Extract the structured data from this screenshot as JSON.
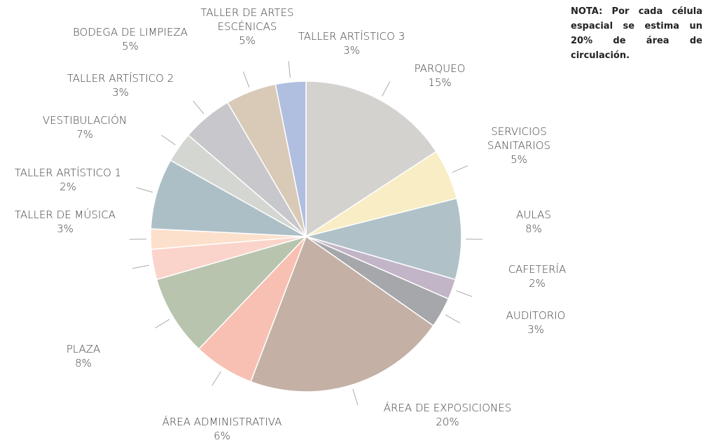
{
  "chart_data": {
    "type": "pie",
    "categories": [
      "PARQUEO",
      "SERVICIOS SANITARIOS",
      "AULAS",
      "CAFETERÍA",
      "AUDITORIO",
      "ÁREA DE EXPOSICIONES",
      "ÁREA ADMINISTRATIVA",
      "PLAZA",
      "TALLER DE MÚSICA",
      "TALLER ARTÍSTICO 1",
      "VESTIBULACIÓN",
      "TALLER ARTÍSTICO 2",
      "BODEGA DE LIMPIEZA",
      "TALLER DE ARTES ESCÉNICAS",
      "TALLER ARTÍSTICO 3"
    ],
    "values": [
      15,
      5,
      8,
      2,
      3,
      20,
      6,
      8,
      3,
      2,
      7,
      3,
      5,
      5,
      3
    ],
    "value_labels": [
      "15%",
      "5%",
      "8%",
      "2%",
      "3%",
      "20%",
      "6%",
      "8%",
      "3%",
      "2%",
      "7%",
      "3%",
      "5%",
      "5%",
      "3%"
    ],
    "colors": [
      "#d4d2cf",
      "#f8edc4",
      "#b0c2c8",
      "#c3b5c8",
      "#a6a7ab",
      "#c4b0a5",
      "#f8c0b2",
      "#b8c4ad",
      "#fad4cb",
      "#fde0cb",
      "#adbfc6",
      "#d4d6d2",
      "#c8c8cc",
      "#d8cab7",
      "#b0bfe0"
    ],
    "annotation": "NOTA: Por cada célula espacial se estima un 20% de área de circulación."
  }
}
